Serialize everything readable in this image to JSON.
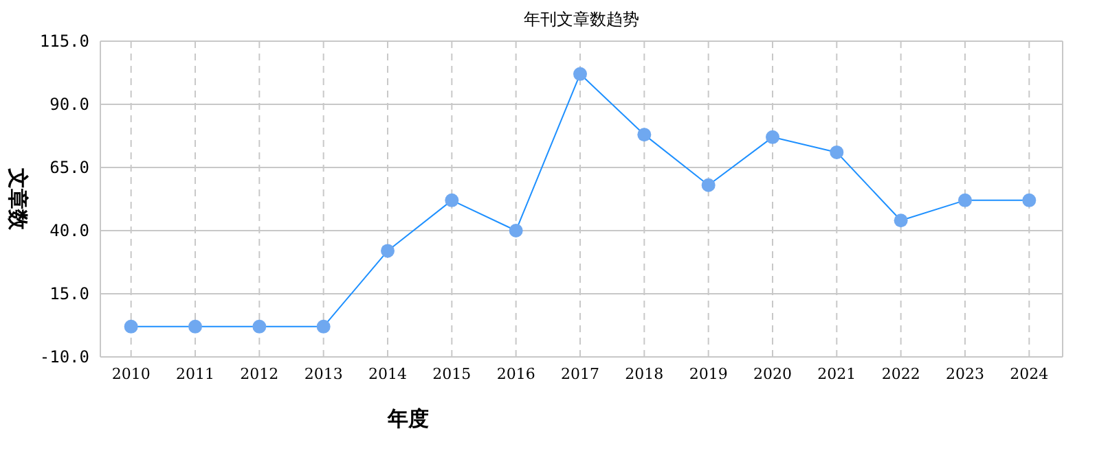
{
  "chart_data": {
    "type": "line",
    "title": "年刊文章数趋势",
    "xlabel": "年度",
    "ylabel": "文章数",
    "categories": [
      "2010",
      "2011",
      "2012",
      "2013",
      "2014",
      "2015",
      "2016",
      "2017",
      "2018",
      "2019",
      "2020",
      "2021",
      "2022",
      "2023",
      "2024"
    ],
    "series": [
      {
        "color": "#1e90ff",
        "values": [
          2,
          2,
          2,
          2,
          32,
          52,
          40,
          102,
          78,
          58,
          77,
          71,
          44,
          52,
          52
        ]
      }
    ],
    "ylim": [
      -10,
      115
    ],
    "yticks": [
      {
        "value": -10,
        "label": "-10.0"
      },
      {
        "value": 15,
        "label": "15.0"
      },
      {
        "value": 40,
        "label": "40.0"
      },
      {
        "value": 65,
        "label": "65.0"
      },
      {
        "value": 90,
        "label": "90.0"
      },
      {
        "value": 115,
        "label": "115.0"
      }
    ],
    "grid": true,
    "marker": "circle",
    "line_style": "solid"
  }
}
